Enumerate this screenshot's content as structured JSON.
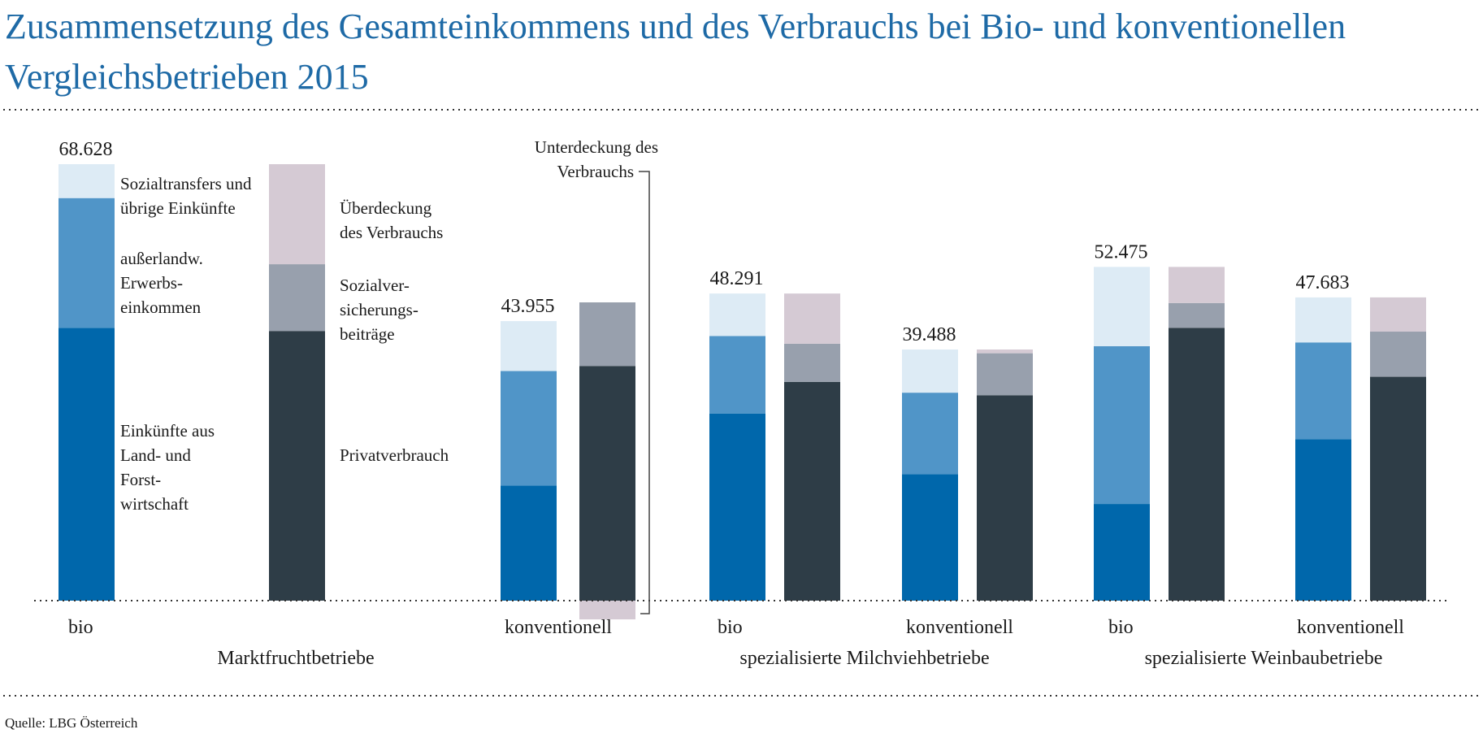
{
  "title": "Zusammensetzung des Gesamteinkommens und des Verbrauchs bei Bio- und konventionellen Vergleichsbetrieben 2015",
  "source": "Quelle: LBG Österreich",
  "colors": {
    "title": "#1e6aa6",
    "einkuenfte_lf": "#0067ab",
    "ausserlandw": "#5095c8",
    "sozialtransfers": "#ddebf5",
    "privatverbrauch": "#2e3d47",
    "sozialversicherung": "#98a0ad",
    "ueberdeckung": "#d5cad4"
  },
  "chart_data": {
    "type": "bar",
    "stacked": true,
    "title": "Zusammensetzung des Gesamteinkommens und des Verbrauchs bei Bio- und konventionellen Vergleichsbetrieben 2015",
    "unit": "",
    "ylim": [
      0,
      70000
    ],
    "grid": false,
    "axis_labels_shown": false,
    "groups": [
      {
        "name": "Marktfruchtbetriebe",
        "farms": [
          {
            "label": "bio",
            "total_label": "68.628",
            "income": {
              "einkuenfte_lf": 42900,
              "ausserlandw": 20400,
              "sozialtransfers": 5328
            },
            "use": {
              "privatverbrauch": 42400,
              "sozialversicherung": 10500,
              "ueberdeckung": 15728
            }
          },
          {
            "label": "konventionell",
            "total_label": "43.955",
            "income": {
              "einkuenfte_lf": 18100,
              "ausserlandw": 18000,
              "sozialtransfers": 7855
            },
            "use": {
              "privatverbrauch": 36900,
              "sozialversicherung": 10000,
              "ueberdeckung": -2945
            }
          }
        ]
      },
      {
        "name": "spezialisierte Milchviehbetriebe",
        "farms": [
          {
            "label": "bio",
            "total_label": "48.291",
            "income": {
              "einkuenfte_lf": 29400,
              "ausserlandw": 12200,
              "sozialtransfers": 6691
            },
            "use": {
              "privatverbrauch": 34400,
              "sozialversicherung": 6000,
              "ueberdeckung": 7891
            }
          },
          {
            "label": "konventionell",
            "total_label": "39.488",
            "income": {
              "einkuenfte_lf": 19900,
              "ausserlandw": 12800,
              "sozialtransfers": 6788
            },
            "use": {
              "privatverbrauch": 32300,
              "sozialversicherung": 6600,
              "ueberdeckung": 588
            }
          }
        ]
      },
      {
        "name": "spezialisierte Weinbaubetriebe",
        "farms": [
          {
            "label": "bio",
            "total_label": "52.475",
            "income": {
              "einkuenfte_lf": 15200,
              "ausserlandw": 24800,
              "sozialtransfers": 12475
            },
            "use": {
              "privatverbrauch": 42900,
              "sozialversicherung": 3900,
              "ueberdeckung": 5675
            }
          },
          {
            "label": "konventionell",
            "total_label": "47.683",
            "income": {
              "einkuenfte_lf": 25400,
              "ausserlandw": 15200,
              "sozialtransfers": 7083
            },
            "use": {
              "privatverbrauch": 35200,
              "sozialversicherung": 7100,
              "ueberdeckung": 5383
            }
          }
        ]
      }
    ],
    "legend": {
      "sozialtransfers": "Sozialtransfers und übrige Einkünfte",
      "ausserlandw": "außerlandw. Erwerbs- einkommen",
      "einkuenfte_lf": "Einkünfte aus Land- und Forst- wirtschaft",
      "ueberdeckung": "Überdeckung des Verbrauchs",
      "sozialversicherung": "Sozialver- sicherungs- beiträge",
      "privatverbrauch": "Privatverbrauch",
      "unterdeckung": "Unterdeckung des Verbrauchs"
    }
  }
}
